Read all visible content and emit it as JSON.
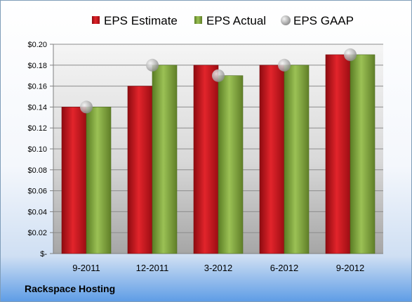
{
  "company": "Rackspace Hosting",
  "chart_data": {
    "type": "bar",
    "categories": [
      "9-2011",
      "12-2011",
      "3-2012",
      "6-2012",
      "9-2012"
    ],
    "series": [
      {
        "name": "EPS Estimate",
        "values": [
          0.14,
          0.16,
          0.18,
          0.18,
          0.19
        ],
        "color": "#c0141c"
      },
      {
        "name": "EPS Actual",
        "values": [
          0.14,
          0.18,
          0.17,
          0.18,
          0.19
        ],
        "color": "#7fa43a"
      },
      {
        "name": "EPS GAAP",
        "type": "scatter",
        "values": [
          0.14,
          0.18,
          0.17,
          0.18,
          0.19
        ],
        "color": "#a8a8a8"
      }
    ],
    "ylim": [
      0,
      0.2
    ],
    "yticks": [
      0,
      0.02,
      0.04,
      0.06,
      0.08,
      0.1,
      0.12,
      0.14,
      0.16,
      0.18,
      0.2
    ],
    "ytick_labels": [
      "$-",
      "$0.02",
      "$0.04",
      "$0.06",
      "$0.08",
      "$0.10",
      "$0.12",
      "$0.14",
      "$0.16",
      "$0.18",
      "$0.20"
    ],
    "legend_position": "top",
    "grid": true
  }
}
